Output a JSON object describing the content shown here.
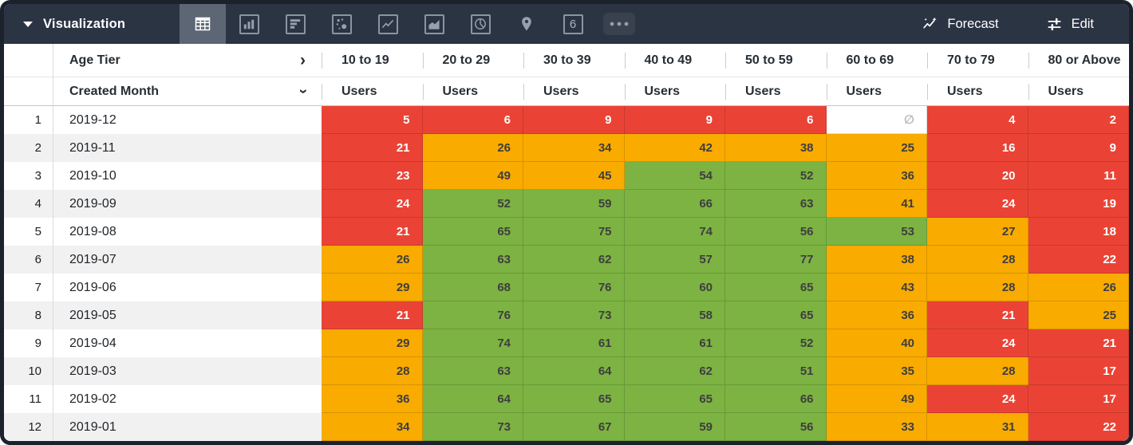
{
  "colors": {
    "topbar_bg": "#2B3443",
    "selected_tool_bg": "#5C6674",
    "red": "#EA4335",
    "orange": "#F9AB00",
    "green": "#7CB342",
    "cell_text": "#3E3E3E",
    "null_text": "#B5B5B5",
    "stripe": "#F1F1F1"
  },
  "topbar": {
    "viz_label": "Visualization",
    "forecast_label": "Forecast",
    "edit_label": "Edit",
    "tools": [
      {
        "id": "table",
        "selected": true
      },
      {
        "id": "column-chart",
        "selected": false
      },
      {
        "id": "bar-chart",
        "selected": false
      },
      {
        "id": "scatter-chart",
        "selected": false
      },
      {
        "id": "line-chart",
        "selected": false
      },
      {
        "id": "area-chart",
        "selected": false
      },
      {
        "id": "pie-chart",
        "selected": false
      },
      {
        "id": "map-pin",
        "selected": false
      },
      {
        "id": "single-value",
        "selected": false,
        "label": "6"
      },
      {
        "id": "more",
        "selected": false
      }
    ]
  },
  "table": {
    "pivot_label": "Age Tier",
    "dimension_label": "Created Month",
    "measure_label": "Users",
    "null_symbol": "∅",
    "age_tiers": [
      "10 to 19",
      "20 to 29",
      "30 to 39",
      "40 to 49",
      "50 to 59",
      "60 to 69",
      "70 to 79",
      "80 or Above"
    ],
    "rows": [
      {
        "n": 1,
        "month": "2019-12",
        "cells": [
          {
            "v": 5,
            "c": "red"
          },
          {
            "v": 6,
            "c": "red"
          },
          {
            "v": 9,
            "c": "red"
          },
          {
            "v": 9,
            "c": "red"
          },
          {
            "v": 6,
            "c": "red"
          },
          {
            "v": null,
            "c": "empty"
          },
          {
            "v": 4,
            "c": "red"
          },
          {
            "v": 2,
            "c": "red"
          }
        ]
      },
      {
        "n": 2,
        "month": "2019-11",
        "cells": [
          {
            "v": 21,
            "c": "red"
          },
          {
            "v": 26,
            "c": "orange"
          },
          {
            "v": 34,
            "c": "orange"
          },
          {
            "v": 42,
            "c": "orange"
          },
          {
            "v": 38,
            "c": "orange"
          },
          {
            "v": 25,
            "c": "orange"
          },
          {
            "v": 16,
            "c": "red"
          },
          {
            "v": 9,
            "c": "red"
          }
        ]
      },
      {
        "n": 3,
        "month": "2019-10",
        "cells": [
          {
            "v": 23,
            "c": "red"
          },
          {
            "v": 49,
            "c": "orange"
          },
          {
            "v": 45,
            "c": "orange"
          },
          {
            "v": 54,
            "c": "green"
          },
          {
            "v": 52,
            "c": "green"
          },
          {
            "v": 36,
            "c": "orange"
          },
          {
            "v": 20,
            "c": "red"
          },
          {
            "v": 11,
            "c": "red"
          }
        ]
      },
      {
        "n": 4,
        "month": "2019-09",
        "cells": [
          {
            "v": 24,
            "c": "red"
          },
          {
            "v": 52,
            "c": "green"
          },
          {
            "v": 59,
            "c": "green"
          },
          {
            "v": 66,
            "c": "green"
          },
          {
            "v": 63,
            "c": "green"
          },
          {
            "v": 41,
            "c": "orange"
          },
          {
            "v": 24,
            "c": "red"
          },
          {
            "v": 19,
            "c": "red"
          }
        ]
      },
      {
        "n": 5,
        "month": "2019-08",
        "cells": [
          {
            "v": 21,
            "c": "red"
          },
          {
            "v": 65,
            "c": "green"
          },
          {
            "v": 75,
            "c": "green"
          },
          {
            "v": 74,
            "c": "green"
          },
          {
            "v": 56,
            "c": "green"
          },
          {
            "v": 53,
            "c": "green"
          },
          {
            "v": 27,
            "c": "orange"
          },
          {
            "v": 18,
            "c": "red"
          }
        ]
      },
      {
        "n": 6,
        "month": "2019-07",
        "cells": [
          {
            "v": 26,
            "c": "orange"
          },
          {
            "v": 63,
            "c": "green"
          },
          {
            "v": 62,
            "c": "green"
          },
          {
            "v": 57,
            "c": "green"
          },
          {
            "v": 77,
            "c": "green"
          },
          {
            "v": 38,
            "c": "orange"
          },
          {
            "v": 28,
            "c": "orange"
          },
          {
            "v": 22,
            "c": "red"
          }
        ]
      },
      {
        "n": 7,
        "month": "2019-06",
        "cells": [
          {
            "v": 29,
            "c": "orange"
          },
          {
            "v": 68,
            "c": "green"
          },
          {
            "v": 76,
            "c": "green"
          },
          {
            "v": 60,
            "c": "green"
          },
          {
            "v": 65,
            "c": "green"
          },
          {
            "v": 43,
            "c": "orange"
          },
          {
            "v": 28,
            "c": "orange"
          },
          {
            "v": 26,
            "c": "orange"
          }
        ]
      },
      {
        "n": 8,
        "month": "2019-05",
        "cells": [
          {
            "v": 21,
            "c": "red"
          },
          {
            "v": 76,
            "c": "green"
          },
          {
            "v": 73,
            "c": "green"
          },
          {
            "v": 58,
            "c": "green"
          },
          {
            "v": 65,
            "c": "green"
          },
          {
            "v": 36,
            "c": "orange"
          },
          {
            "v": 21,
            "c": "red"
          },
          {
            "v": 25,
            "c": "orange"
          }
        ]
      },
      {
        "n": 9,
        "month": "2019-04",
        "cells": [
          {
            "v": 29,
            "c": "orange"
          },
          {
            "v": 74,
            "c": "green"
          },
          {
            "v": 61,
            "c": "green"
          },
          {
            "v": 61,
            "c": "green"
          },
          {
            "v": 52,
            "c": "green"
          },
          {
            "v": 40,
            "c": "orange"
          },
          {
            "v": 24,
            "c": "red"
          },
          {
            "v": 21,
            "c": "red"
          }
        ]
      },
      {
        "n": 10,
        "month": "2019-03",
        "cells": [
          {
            "v": 28,
            "c": "orange"
          },
          {
            "v": 63,
            "c": "green"
          },
          {
            "v": 64,
            "c": "green"
          },
          {
            "v": 62,
            "c": "green"
          },
          {
            "v": 51,
            "c": "green"
          },
          {
            "v": 35,
            "c": "orange"
          },
          {
            "v": 28,
            "c": "orange"
          },
          {
            "v": 17,
            "c": "red"
          }
        ]
      },
      {
        "n": 11,
        "month": "2019-02",
        "cells": [
          {
            "v": 36,
            "c": "orange"
          },
          {
            "v": 64,
            "c": "green"
          },
          {
            "v": 65,
            "c": "green"
          },
          {
            "v": 65,
            "c": "green"
          },
          {
            "v": 66,
            "c": "green"
          },
          {
            "v": 49,
            "c": "orange"
          },
          {
            "v": 24,
            "c": "red"
          },
          {
            "v": 17,
            "c": "red"
          }
        ]
      },
      {
        "n": 12,
        "month": "2019-01",
        "cells": [
          {
            "v": 34,
            "c": "orange"
          },
          {
            "v": 73,
            "c": "green"
          },
          {
            "v": 67,
            "c": "green"
          },
          {
            "v": 59,
            "c": "green"
          },
          {
            "v": 56,
            "c": "green"
          },
          {
            "v": 33,
            "c": "orange"
          },
          {
            "v": 31,
            "c": "orange"
          },
          {
            "v": 22,
            "c": "red"
          }
        ]
      }
    ]
  }
}
